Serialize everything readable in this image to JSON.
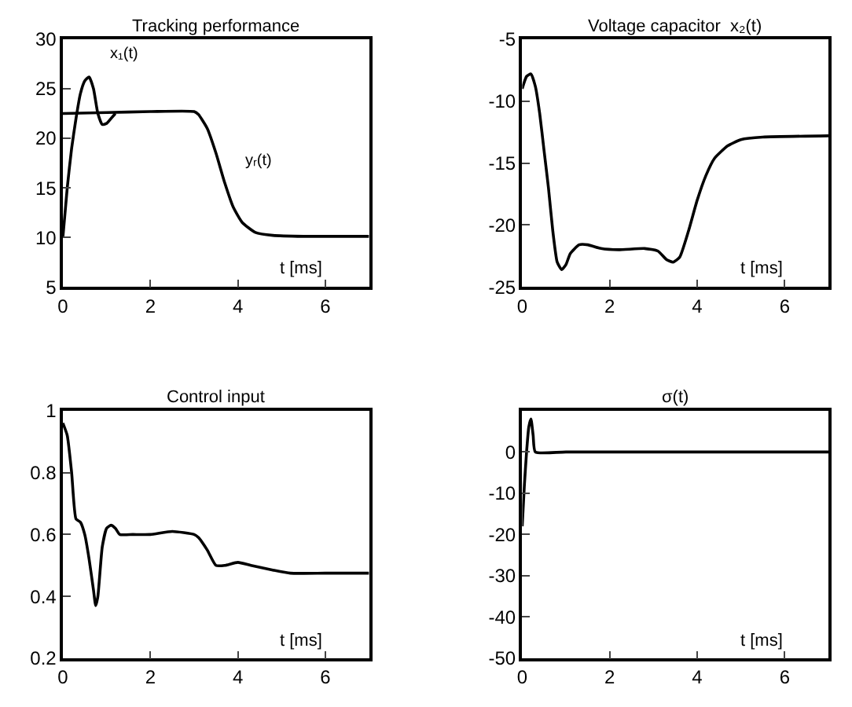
{
  "chart_data": [
    {
      "type": "line",
      "title": "Tracking performance",
      "xlabel": "t [ms]",
      "xlim": [
        0,
        7
      ],
      "xticks": [
        0,
        2,
        4,
        6
      ],
      "ylim": [
        5,
        30
      ],
      "yticks": [
        5,
        10,
        15,
        20,
        25,
        30
      ],
      "marker": "none",
      "line_style": "solid",
      "series": [
        {
          "name": "x₁(t)",
          "color": "#000000",
          "x": [
            0,
            0.1,
            0.2,
            0.3,
            0.4,
            0.5,
            0.6,
            0.7,
            0.8,
            0.9,
            1.0,
            1.1,
            1.2
          ],
          "values": [
            10,
            15,
            19,
            22,
            24.5,
            25.8,
            26.2,
            25,
            22.5,
            21.4,
            21.5,
            22,
            22.5
          ]
        },
        {
          "name": "yᵣ(t)",
          "color": "#000000",
          "x": [
            0,
            1,
            2,
            3,
            3.1,
            3.3,
            3.5,
            3.7,
            3.9,
            4.1,
            4.4,
            4.8,
            5.5,
            7
          ],
          "values": [
            22.5,
            22.6,
            22.7,
            22.7,
            22.4,
            21,
            18.5,
            15.5,
            13,
            11.5,
            10.5,
            10.2,
            10.1,
            10.1
          ]
        }
      ]
    },
    {
      "type": "line",
      "title": "Voltage capacitor  x₂(t)",
      "xlabel": "t [ms]",
      "xlim": [
        0,
        7
      ],
      "xticks": [
        0,
        2,
        4,
        6
      ],
      "ylim": [
        -25,
        -5
      ],
      "yticks": [
        -25,
        -20,
        -15,
        -10,
        -5
      ],
      "marker": "none",
      "line_style": "solid",
      "series": [
        {
          "color": "#000000",
          "x": [
            0,
            0.1,
            0.2,
            0.3,
            0.4,
            0.5,
            0.6,
            0.7,
            0.8,
            0.9,
            1.0,
            1.1,
            1.3,
            1.5,
            1.8,
            2.2,
            2.8,
            3.1,
            3.3,
            3.45,
            3.6,
            3.8,
            4.0,
            4.2,
            4.4,
            4.7,
            5,
            5.5,
            7
          ],
          "values": [
            -9,
            -8,
            -7.8,
            -8.8,
            -11,
            -14,
            -17,
            -20.5,
            -23,
            -23.6,
            -23.2,
            -22.3,
            -21.6,
            -21.6,
            -21.9,
            -22,
            -21.9,
            -22.1,
            -22.8,
            -23,
            -22.6,
            -20.5,
            -18,
            -16,
            -14.6,
            -13.6,
            -13.1,
            -12.9,
            -12.8
          ]
        }
      ]
    },
    {
      "type": "line",
      "title": "Control input",
      "xlabel": "t [ms]",
      "xlim": [
        0,
        7
      ],
      "xticks": [
        0,
        2,
        4,
        6
      ],
      "ylim": [
        0.2,
        1
      ],
      "yticks": [
        0.2,
        0.4,
        0.6,
        0.8,
        1
      ],
      "marker": "none",
      "line_style": "solid",
      "series": [
        {
          "color": "#000000",
          "x": [
            0,
            0.1,
            0.2,
            0.3,
            0.4,
            0.5,
            0.6,
            0.7,
            0.75,
            0.8,
            0.9,
            1.0,
            1.1,
            1.2,
            1.3,
            1.6,
            2,
            2.5,
            3,
            3.1,
            3.3,
            3.5,
            3.7,
            4,
            4.3,
            4.8,
            5.2,
            6,
            7
          ],
          "values": [
            0.96,
            0.92,
            0.8,
            0.65,
            0.64,
            0.6,
            0.52,
            0.42,
            0.37,
            0.4,
            0.56,
            0.62,
            0.63,
            0.62,
            0.6,
            0.6,
            0.6,
            0.61,
            0.6,
            0.59,
            0.55,
            0.5,
            0.5,
            0.51,
            0.5,
            0.485,
            0.475,
            0.475,
            0.475
          ]
        }
      ]
    },
    {
      "type": "line",
      "title": "σ(t)",
      "xlabel": "t [ms]",
      "xlim": [
        0,
        7
      ],
      "xticks": [
        0,
        2,
        4,
        6
      ],
      "ylim": [
        -50,
        10
      ],
      "yticks": [
        -50,
        -40,
        -30,
        -20,
        -10,
        0
      ],
      "marker": "none",
      "line_style": "solid",
      "series": [
        {
          "color": "#000000",
          "x": [
            0,
            0.05,
            0.1,
            0.15,
            0.2,
            0.25,
            0.3,
            1,
            7
          ],
          "values": [
            -18,
            -8,
            0,
            6,
            8,
            4,
            0,
            0,
            0
          ]
        }
      ]
    }
  ]
}
